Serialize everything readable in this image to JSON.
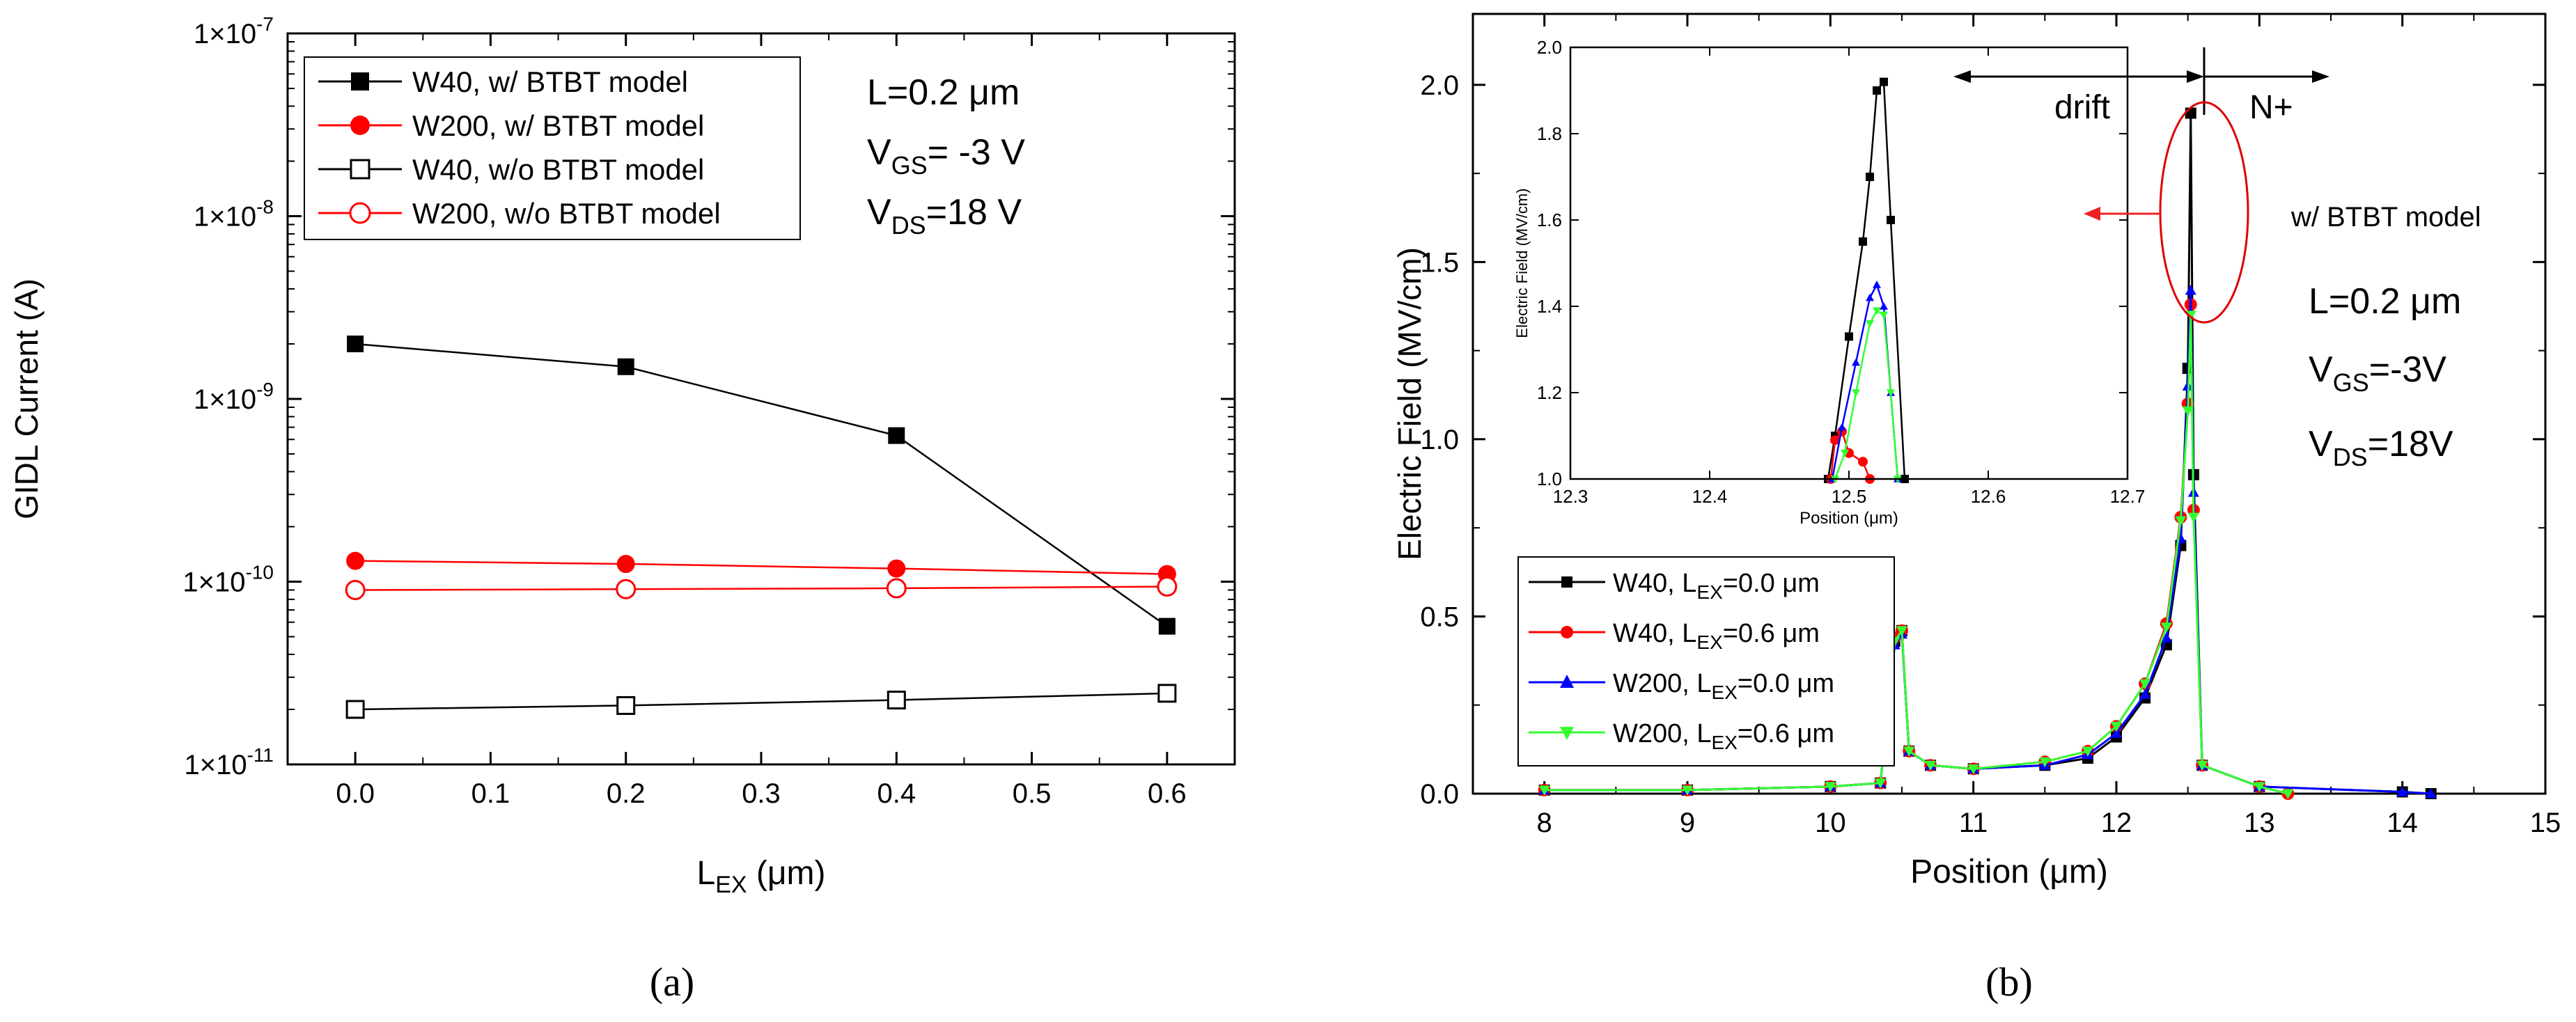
{
  "chart_data": [
    {
      "panel": "(a)",
      "type": "line",
      "xlabel_main": "L",
      "xlabel_sub": "EX",
      "xlabel_unit": " (μm)",
      "ylabel": "GIDL Current (A)",
      "xscale": "linear",
      "yscale": "log",
      "xlim": [
        -0.05,
        0.65
      ],
      "ylim": [
        1e-11,
        1e-07
      ],
      "xticks": [
        0.0,
        0.1,
        0.2,
        0.3,
        0.4,
        0.5,
        0.6
      ],
      "xtick_labels": [
        "0.0",
        "0.1",
        "0.2",
        "0.3",
        "0.4",
        "0.5",
        "0.6"
      ],
      "yticks": [
        1e-11,
        1e-10,
        1e-09,
        1e-08,
        1e-07
      ],
      "ytick_labels": [
        {
          "base": "1×10",
          "exp": "-11"
        },
        {
          "base": "1×10",
          "exp": "-10"
        },
        {
          "base": "1×10",
          "exp": "-9"
        },
        {
          "base": "1×10",
          "exp": "-8"
        },
        {
          "base": "1×10",
          "exp": "-7"
        }
      ],
      "legend_position": "top-left",
      "series": [
        {
          "name": "W40, w/ BTBT model",
          "color": "#000000",
          "marker": "square-filled",
          "x": [
            0.0,
            0.2,
            0.4,
            0.6
          ],
          "y": [
            2e-09,
            1.5e-09,
            6.3e-10,
            5.7e-11
          ]
        },
        {
          "name": "W200, w/ BTBT model",
          "color": "#ff0000",
          "marker": "circle-filled",
          "x": [
            0.0,
            0.2,
            0.4,
            0.6
          ],
          "y": [
            1.3e-10,
            1.25e-10,
            1.18e-10,
            1.1e-10
          ]
        },
        {
          "name": "W40, w/o BTBT model",
          "color": "#000000",
          "marker": "square-open",
          "x": [
            0.0,
            0.2,
            0.4,
            0.6
          ],
          "y": [
            2e-11,
            2.1e-11,
            2.25e-11,
            2.45e-11
          ]
        },
        {
          "name": "W200, w/o BTBT model",
          "color": "#ff0000",
          "marker": "circle-open",
          "x": [
            0.0,
            0.2,
            0.4,
            0.6
          ],
          "y": [
            9e-11,
            9.1e-11,
            9.2e-11,
            9.4e-11
          ]
        }
      ],
      "annotations": {
        "length": "L=0.2 μm",
        "vgs_prefix": "V",
        "vgs_sub": "GS",
        "vgs_value": "= -3 V",
        "vds_prefix": "V",
        "vds_sub": "DS",
        "vds_value": "=18 V"
      }
    },
    {
      "panel": "(b)",
      "type": "line",
      "xlabel": "Position (μm)",
      "ylabel": "Electric Field (MV/cm)",
      "xlim": [
        7.5,
        15
      ],
      "ylim": [
        0.0,
        2.2
      ],
      "xticks": [
        8,
        9,
        10,
        11,
        12,
        13,
        14,
        15
      ],
      "yticks": [
        0.0,
        0.5,
        1.0,
        1.5,
        2.0
      ],
      "ytick_labels": [
        "0.0",
        "0.5",
        "1.0",
        "1.5",
        "2.0"
      ],
      "legend_position": "bottom-left",
      "series": [
        {
          "name_prefix": "W40, L",
          "name_sub": "EX",
          "name_suffix": "=0.0 μm",
          "color": "#000000",
          "marker": "square",
          "x": [
            8.0,
            9.0,
            10.0,
            10.35,
            10.45,
            10.5,
            10.55,
            10.7,
            11.0,
            11.5,
            11.8,
            12.0,
            12.2,
            12.35,
            12.45,
            12.5,
            12.52,
            12.54,
            12.6,
            13.0,
            14.0,
            14.2
          ],
          "y": [
            0.01,
            0.01,
            0.02,
            0.03,
            0.43,
            0.46,
            0.12,
            0.08,
            0.07,
            0.08,
            0.1,
            0.16,
            0.27,
            0.42,
            0.7,
            1.2,
            1.92,
            0.9,
            0.08,
            0.02,
            0.005,
            0.0
          ]
        },
        {
          "name_prefix": "W40, L",
          "name_sub": "EX",
          "name_suffix": "=0.6 μm",
          "color": "#ff0000",
          "marker": "circle",
          "x": [
            8.0,
            9.0,
            10.0,
            10.35,
            10.45,
            10.5,
            10.55,
            10.7,
            11.0,
            11.5,
            11.8,
            12.0,
            12.2,
            12.35,
            12.45,
            12.5,
            12.52,
            12.54,
            12.6,
            13.0,
            13.2
          ],
          "y": [
            0.01,
            0.01,
            0.02,
            0.03,
            0.44,
            0.46,
            0.12,
            0.08,
            0.07,
            0.09,
            0.12,
            0.19,
            0.31,
            0.48,
            0.78,
            1.1,
            1.38,
            0.8,
            0.08,
            0.02,
            0.0
          ]
        },
        {
          "name_prefix": "W200, L",
          "name_sub": "EX",
          "name_suffix": "=0.0 μm",
          "color": "#0000ff",
          "marker": "triangle-up",
          "x": [
            8.0,
            9.0,
            10.0,
            10.35,
            10.45,
            10.5,
            10.55,
            10.7,
            11.0,
            11.5,
            11.8,
            12.0,
            12.2,
            12.35,
            12.45,
            12.5,
            12.52,
            12.54,
            12.6,
            13.0,
            14.0,
            14.2
          ],
          "y": [
            0.01,
            0.01,
            0.02,
            0.03,
            0.42,
            0.45,
            0.12,
            0.08,
            0.07,
            0.08,
            0.11,
            0.17,
            0.28,
            0.44,
            0.72,
            1.15,
            1.42,
            0.85,
            0.08,
            0.02,
            0.005,
            0.0
          ]
        },
        {
          "name_prefix": "W200, L",
          "name_sub": "EX",
          "name_suffix": "=0.6 μm",
          "color": "#33ff33",
          "marker": "triangle-down",
          "x": [
            8.0,
            9.0,
            10.0,
            10.35,
            10.45,
            10.5,
            10.55,
            10.7,
            11.0,
            11.5,
            11.8,
            12.0,
            12.2,
            12.35,
            12.45,
            12.5,
            12.52,
            12.54,
            12.6,
            13.0,
            13.2
          ],
          "y": [
            0.01,
            0.01,
            0.02,
            0.03,
            0.43,
            0.46,
            0.12,
            0.08,
            0.07,
            0.09,
            0.12,
            0.19,
            0.31,
            0.47,
            0.77,
            1.08,
            1.35,
            0.78,
            0.08,
            0.02,
            0.0
          ]
        }
      ],
      "annotations": {
        "drift": "drift",
        "n_plus": "N+",
        "btbt": "w/ BTBT model",
        "length": "L=0.2 μm",
        "vgs_prefix": "V",
        "vgs_sub": "GS",
        "vgs_value": "=-3V",
        "vds_prefix": "V",
        "vds_sub": "DS",
        "vds_value": "=18V"
      },
      "inset": {
        "xlabel": "Position (μm)",
        "ylabel": "Electric Field (MV/cm)",
        "xlim": [
          12.3,
          12.7
        ],
        "ylim": [
          1.0,
          2.0
        ],
        "xticks": [
          12.3,
          12.4,
          12.5,
          12.6,
          12.7
        ],
        "xtick_labels": [
          "12.3",
          "12.4",
          "12.5",
          "12.6",
          "12.7"
        ],
        "yticks": [
          1.0,
          1.2,
          1.4,
          1.6,
          1.8,
          2.0
        ],
        "ytick_labels": [
          "1.0",
          "1.2",
          "1.4",
          "1.6",
          "1.8",
          "2.0"
        ],
        "series": [
          {
            "color": "#000000",
            "marker": "square",
            "x": [
              12.485,
              12.49,
              12.5,
              12.51,
              12.515,
              12.52,
              12.525,
              12.53,
              12.54
            ],
            "y": [
              1.0,
              1.1,
              1.33,
              1.55,
              1.7,
              1.9,
              1.92,
              1.6,
              1.0
            ]
          },
          {
            "color": "#ff0000",
            "marker": "circle",
            "x": [
              12.487,
              12.49,
              12.495,
              12.5,
              12.51,
              12.515
            ],
            "y": [
              1.0,
              1.09,
              1.11,
              1.06,
              1.04,
              1.0
            ]
          },
          {
            "color": "#0000ff",
            "marker": "triangle-up",
            "x": [
              12.488,
              12.495,
              12.505,
              12.515,
              12.52,
              12.525,
              12.53,
              12.535
            ],
            "y": [
              1.0,
              1.12,
              1.27,
              1.42,
              1.45,
              1.4,
              1.2,
              1.0
            ]
          },
          {
            "color": "#33ff33",
            "marker": "triangle-down",
            "x": [
              12.49,
              12.497,
              12.505,
              12.515,
              12.52,
              12.525,
              12.53,
              12.535
            ],
            "y": [
              1.0,
              1.06,
              1.2,
              1.36,
              1.39,
              1.38,
              1.2,
              1.0
            ]
          }
        ]
      }
    }
  ],
  "captions": {
    "a": "(a)",
    "b": "(b)"
  }
}
